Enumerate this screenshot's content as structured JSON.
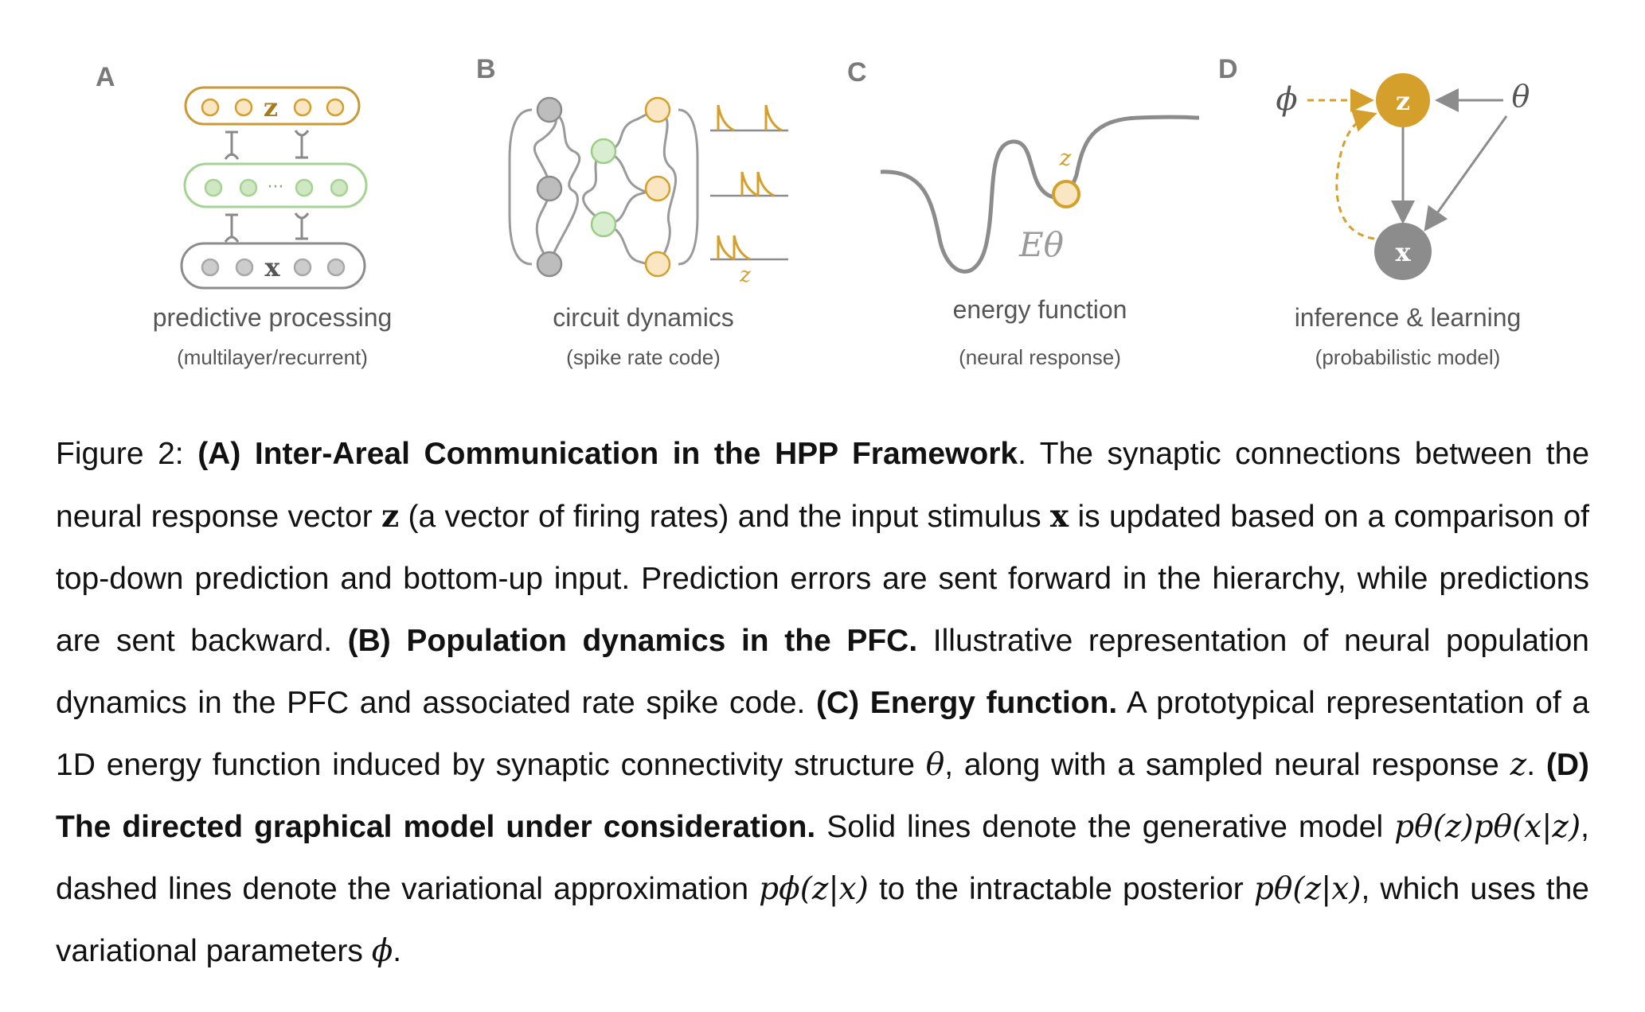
{
  "panels": {
    "A": {
      "letter": "A",
      "title": "predictive processing",
      "subtitle": "(multilayer/recurrent)",
      "top_label": "z",
      "bottom_label": "x",
      "dots": "···"
    },
    "B": {
      "letter": "B",
      "title": "circuit dynamics",
      "subtitle": "(spike rate code)",
      "spike_label": "z"
    },
    "C": {
      "letter": "C",
      "title": "energy function",
      "subtitle": "(neural response)",
      "z_label": "z",
      "energy_label": "Eθ"
    },
    "D": {
      "letter": "D",
      "title": "inference & learning",
      "subtitle": "(probabilistic model)",
      "phi": "ϕ",
      "theta": "θ",
      "z_node": "z",
      "x_node": "x"
    }
  },
  "caption": {
    "prefix": "Figure 2:",
    "a_bold": "(A) Inter-Areal Communication in the HPP Framework",
    "a_t1": ". The synaptic connections between the neural response vector ",
    "z": "z",
    "a_t2": " (a vector of firing rates) and the input stimulus ",
    "x": "x",
    "a_t3": " is updated based on a comparison of top-down prediction and bottom-up input. Prediction errors are sent forward in the hierarchy, while predictions are sent backward. ",
    "b_bold": "(B) Population dynamics in the PFC.",
    "b_t1": " Illustrative representation of neural population dynamics in the PFC and associated rate spike code. ",
    "c_bold": "(C) Energy function.",
    "c_t1": " A prototypical representation of a 1D energy function induced by synaptic connectivity structure ",
    "theta": "θ",
    "c_t2": ", along with a sampled neural response ",
    "zi": "z",
    "c_t3": ". ",
    "d_bold": "(D) The directed graphical model under consideration.",
    "d_t1": " Solid lines denote the generative model ",
    "gen_model": "pθ(z)pθ(x|z)",
    "d_t2": ", dashed lines denote the variational approximation ",
    "var_approx": "pϕ(z|x)",
    "d_t3": " to the intractable posterior ",
    "posterior": "pθ(z|x)",
    "d_t4": ", which uses the variational parameters ",
    "phi": "ϕ",
    "d_t5": "."
  },
  "colors": {
    "gold": "#d4a02b",
    "gold_fill": "#fbe6c4",
    "green": "#9bcd86",
    "green_fill": "#d9edd0",
    "gray": "#8c8c8c",
    "gray_fill": "#c4c4c4"
  }
}
